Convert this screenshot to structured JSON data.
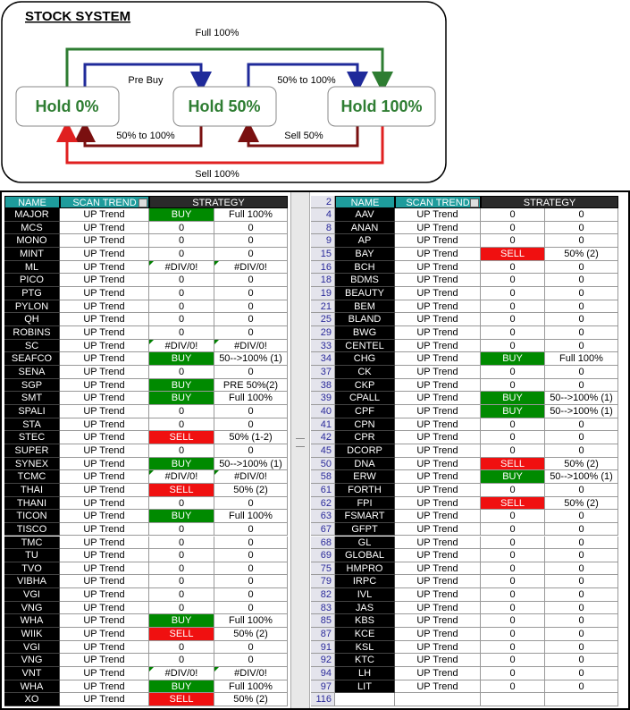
{
  "diagram": {
    "title": "STOCK SYSTEM",
    "nodes": [
      {
        "label": "Hold 0%"
      },
      {
        "label": "Hold 50%"
      },
      {
        "label": "Hold 100%"
      }
    ],
    "edges": [
      {
        "label": "Full 100%"
      },
      {
        "label": "Pre Buy"
      },
      {
        "label": "50% to 100%"
      },
      {
        "label": "50% to 100%"
      },
      {
        "label": "Sell 50%"
      },
      {
        "label": "Sell 100%"
      }
    ]
  },
  "left_table": {
    "headers": [
      "NAME",
      "SCAN TREND",
      "STRATEGY"
    ],
    "rows": [
      [
        "MAJOR",
        "UP Trend",
        "BUY",
        "Full 100%"
      ],
      [
        "MCS",
        "UP Trend",
        "0",
        "0"
      ],
      [
        "MONO",
        "UP Trend",
        "0",
        "0"
      ],
      [
        "MINT",
        "UP Trend",
        "0",
        "0"
      ],
      [
        "ML",
        "UP Trend",
        "#DIV/0!",
        "#DIV/0!"
      ],
      [
        "PICO",
        "UP Trend",
        "0",
        "0"
      ],
      [
        "PTG",
        "UP Trend",
        "0",
        "0"
      ],
      [
        "PYLON",
        "UP Trend",
        "0",
        "0"
      ],
      [
        "QH",
        "UP Trend",
        "0",
        "0"
      ],
      [
        "ROBINS",
        "UP Trend",
        "0",
        "0"
      ],
      [
        "SC",
        "UP Trend",
        "#DIV/0!",
        "#DIV/0!"
      ],
      [
        "SEAFCO",
        "UP Trend",
        "BUY",
        "50-->100% (1)"
      ],
      [
        "SENA",
        "UP Trend",
        "0",
        "0"
      ],
      [
        "SGP",
        "UP Trend",
        "BUY",
        "PRE 50%(2)"
      ],
      [
        "SMT",
        "UP Trend",
        "BUY",
        "Full 100%"
      ],
      [
        "SPALI",
        "UP Trend",
        "0",
        "0"
      ],
      [
        "STA",
        "UP Trend",
        "0",
        "0"
      ],
      [
        "STEC",
        "UP Trend",
        "SELL",
        "50% (1-2)"
      ],
      [
        "SUPER",
        "UP Trend",
        "0",
        "0"
      ],
      [
        "SYNEX",
        "UP Trend",
        "BUY",
        "50-->100% (1)"
      ],
      [
        "TCMC",
        "UP Trend",
        "#DIV/0!",
        "#DIV/0!"
      ],
      [
        "THAI",
        "UP Trend",
        "SELL",
        "50% (2)"
      ],
      [
        "THANI",
        "UP Trend",
        "0",
        "0"
      ],
      [
        "TICON",
        "UP Trend",
        "BUY",
        "Full 100%"
      ],
      [
        "TISCO",
        "UP Trend",
        "0",
        "0"
      ],
      [
        "TMC",
        "UP Trend",
        "0",
        "0"
      ],
      [
        "TU",
        "UP Trend",
        "0",
        "0"
      ],
      [
        "TVO",
        "UP Trend",
        "0",
        "0"
      ],
      [
        "VIBHA",
        "UP Trend",
        "0",
        "0"
      ],
      [
        "VGI",
        "UP Trend",
        "0",
        "0"
      ],
      [
        "VNG",
        "UP Trend",
        "0",
        "0"
      ],
      [
        "WHA",
        "UP Trend",
        "BUY",
        "Full 100%"
      ],
      [
        "WIIK",
        "UP Trend",
        "SELL",
        "50% (2)"
      ],
      [
        "VGI",
        "UP Trend",
        "0",
        "0"
      ],
      [
        "VNG",
        "UP Trend",
        "0",
        "0"
      ],
      [
        "VNT",
        "UP Trend",
        "#DIV/0!",
        "#DIV/0!"
      ],
      [
        "WHA",
        "UP Trend",
        "BUY",
        "Full 100%"
      ],
      [
        "XO",
        "UP Trend",
        "SELL",
        "50% (2)"
      ]
    ]
  },
  "right_table": {
    "corner": "2",
    "headers": [
      "NAME",
      "SCAN TREND",
      "STRATEGY"
    ],
    "rows": [
      [
        "4",
        "AAV",
        "UP Trend",
        "0",
        "0"
      ],
      [
        "8",
        "ANAN",
        "UP Trend",
        "0",
        "0"
      ],
      [
        "9",
        "AP",
        "UP Trend",
        "0",
        "0"
      ],
      [
        "15",
        "BAY",
        "UP Trend",
        "SELL",
        "50% (2)"
      ],
      [
        "16",
        "BCH",
        "UP Trend",
        "0",
        "0"
      ],
      [
        "18",
        "BDMS",
        "UP Trend",
        "0",
        "0"
      ],
      [
        "19",
        "BEAUTY",
        "UP Trend",
        "0",
        "0"
      ],
      [
        "21",
        "BEM",
        "UP Trend",
        "0",
        "0"
      ],
      [
        "25",
        "BLAND",
        "UP Trend",
        "0",
        "0"
      ],
      [
        "29",
        "BWG",
        "UP Trend",
        "0",
        "0"
      ],
      [
        "33",
        "CENTEL",
        "UP Trend",
        "0",
        "0"
      ],
      [
        "34",
        "CHG",
        "UP Trend",
        "BUY",
        "Full 100%"
      ],
      [
        "37",
        "CK",
        "UP Trend",
        "0",
        "0"
      ],
      [
        "38",
        "CKP",
        "UP Trend",
        "0",
        "0"
      ],
      [
        "39",
        "CPALL",
        "UP Trend",
        "BUY",
        "50-->100% (1)"
      ],
      [
        "40",
        "CPF",
        "UP Trend",
        "BUY",
        "50-->100% (1)"
      ],
      [
        "41",
        "CPN",
        "UP Trend",
        "0",
        "0"
      ],
      [
        "42",
        "CPR",
        "UP Trend",
        "0",
        "0"
      ],
      [
        "45",
        "DCORP",
        "UP Trend",
        "0",
        "0"
      ],
      [
        "50",
        "DNA",
        "UP Trend",
        "SELL",
        "50% (2)"
      ],
      [
        "58",
        "ERW",
        "UP Trend",
        "BUY",
        "50-->100% (1)"
      ],
      [
        "61",
        "FORTH",
        "UP Trend",
        "0",
        "0"
      ],
      [
        "62",
        "FPI",
        "UP Trend",
        "SELL",
        "50% (2)"
      ],
      [
        "63",
        "FSMART",
        "UP Trend",
        "0",
        "0"
      ],
      [
        "67",
        "GFPT",
        "UP Trend",
        "0",
        "0"
      ],
      [
        "68",
        "GL",
        "UP Trend",
        "0",
        "0"
      ],
      [
        "69",
        "GLOBAL",
        "UP Trend",
        "0",
        "0"
      ],
      [
        "75",
        "HMPRO",
        "UP Trend",
        "0",
        "0"
      ],
      [
        "79",
        "IRPC",
        "UP Trend",
        "0",
        "0"
      ],
      [
        "82",
        "IVL",
        "UP Trend",
        "0",
        "0"
      ],
      [
        "83",
        "JAS",
        "UP Trend",
        "0",
        "0"
      ],
      [
        "85",
        "KBS",
        "UP Trend",
        "0",
        "0"
      ],
      [
        "87",
        "KCE",
        "UP Trend",
        "0",
        "0"
      ],
      [
        "91",
        "KSL",
        "UP Trend",
        "0",
        "0"
      ],
      [
        "92",
        "KTC",
        "UP Trend",
        "0",
        "0"
      ],
      [
        "94",
        "LH",
        "UP Trend",
        "0",
        "0"
      ],
      [
        "97",
        "LIT",
        "UP Trend",
        "0",
        "0"
      ],
      [
        "116"
      ]
    ]
  }
}
